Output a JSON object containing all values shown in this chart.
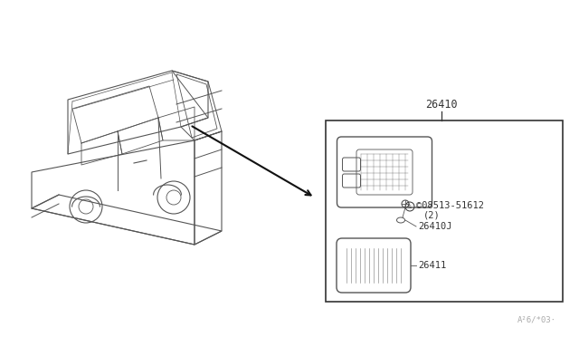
{
  "background_color": "#ffffff",
  "fig_width": 6.4,
  "fig_height": 3.72,
  "dpi": 100,
  "watermark": "A²6/*03·",
  "part_label_26410": "26410",
  "part_label_08513": "©08513-51612",
  "part_label_08513_qty": "(2)",
  "part_label_26410J": "26410J",
  "part_label_26411": "26411",
  "line_color": "#555555",
  "text_color": "#333333"
}
